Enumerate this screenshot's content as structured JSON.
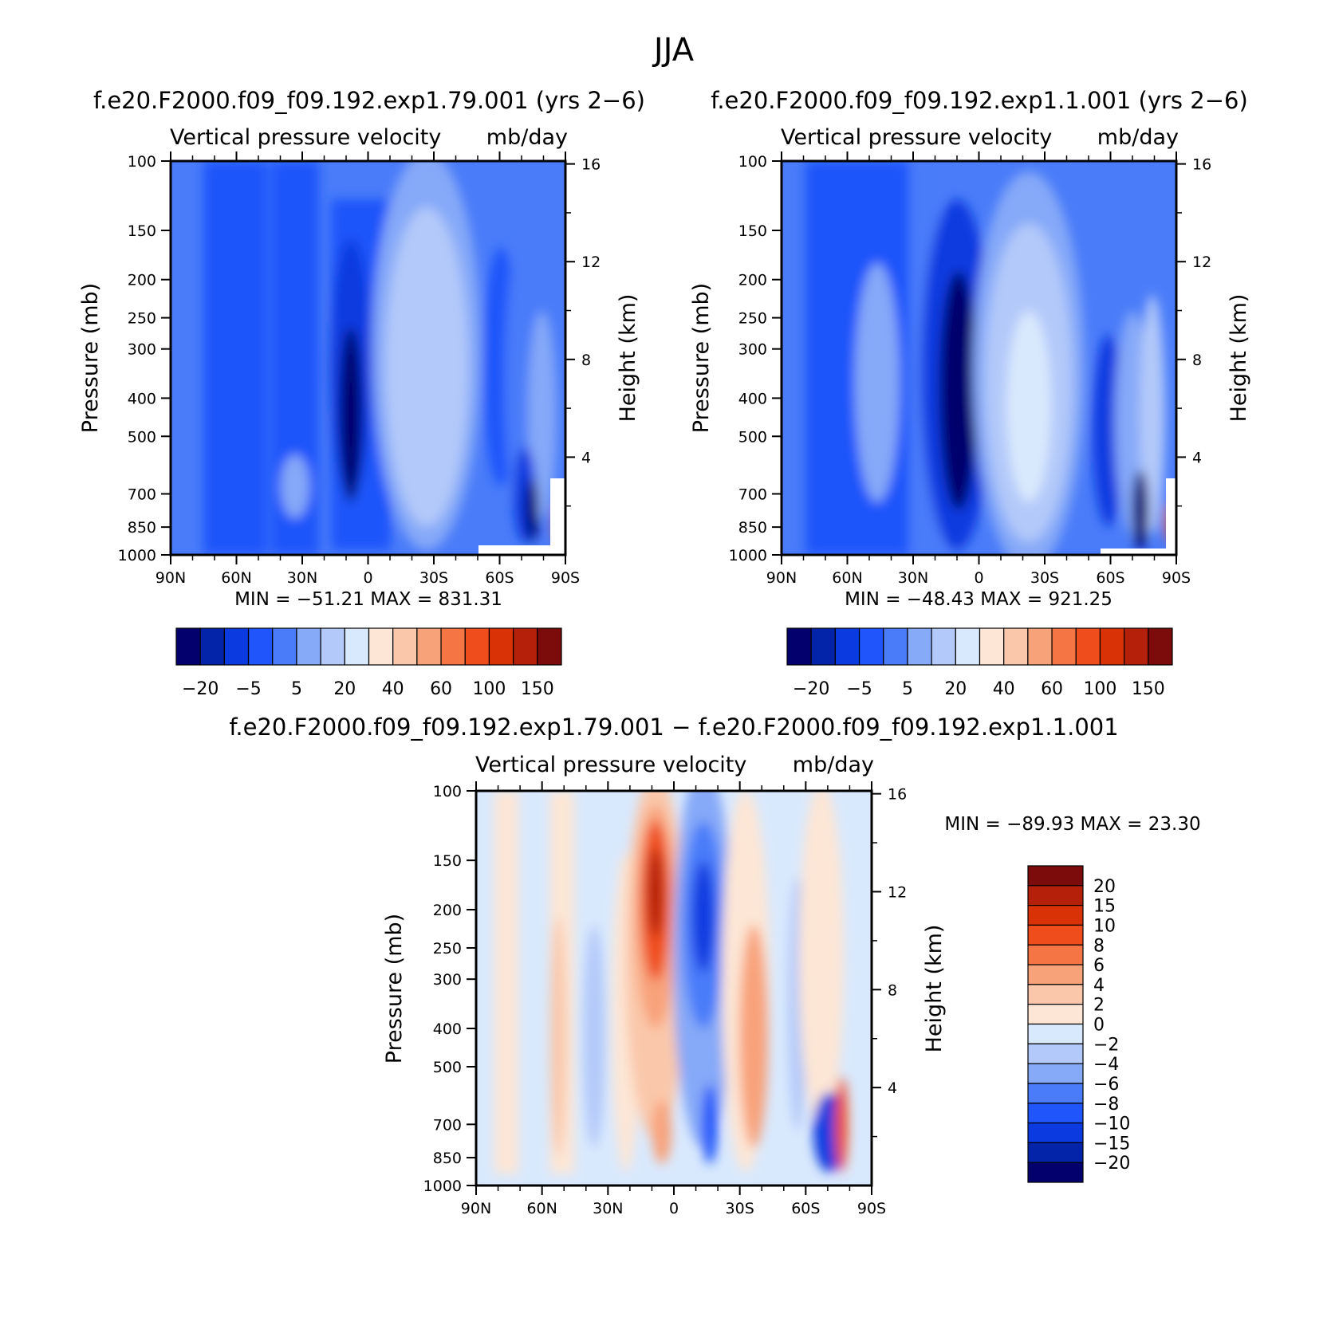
{
  "page_title": "JJA",
  "colors": {
    "top_scale": [
      "#03006d",
      "#0324a8",
      "#0a3ae0",
      "#1f55fa",
      "#4a7cf9",
      "#86a9f8",
      "#b3c9f9",
      "#d9e9fd",
      "#fde6d5",
      "#fac7aa",
      "#f8a27a",
      "#f57545",
      "#ef4d1c",
      "#d93207",
      "#b5200a",
      "#7c0b0b"
    ],
    "diff_scale": [
      "#03006d",
      "#0324a8",
      "#0a3ae0",
      "#1f55fa",
      "#4a7cf9",
      "#86a9f8",
      "#b3c9f9",
      "#d9e9fd",
      "#fde6d5",
      "#fac7aa",
      "#f8a27a",
      "#f57545",
      "#ef4d1c",
      "#d93207",
      "#b5200a",
      "#7c0b0b"
    ]
  },
  "panels": [
    {
      "id": "run1",
      "run_title": "f.e20.F2000.f09_f09.192.exp1.79.001 (yrs 2−6)",
      "var_title": "Vertical pressure velocity",
      "units": "mb/day",
      "min_max": "MIN = −51.21   MAX = 831.31"
    },
    {
      "id": "run2",
      "run_title": "f.e20.F2000.f09_f09.192.exp1.1.001 (yrs 2−6)",
      "var_title": "Vertical pressure velocity",
      "units": "mb/day",
      "min_max": "MIN = −48.43   MAX = 921.25"
    },
    {
      "id": "diff",
      "run_title": "f.e20.F2000.f09_f09.192.exp1.79.001 − f.e20.F2000.f09_f09.192.exp1.1.001",
      "var_title": "Vertical pressure velocity",
      "units": "mb/day",
      "min_max": "MIN = −89.93   MAX =   23.30"
    }
  ],
  "axes": {
    "ylabel": "Pressure (mb)",
    "y2label": "Height (km)",
    "pressure_ticks": [
      "100",
      "150",
      "200",
      "250",
      "300",
      "400",
      "500",
      "700",
      "850",
      "1000"
    ],
    "height_ticks": [
      "16",
      "12",
      "8",
      "4"
    ],
    "lat_ticks": [
      "90N",
      "60N",
      "30N",
      "0",
      "30S",
      "60S",
      "90S"
    ]
  },
  "colorbar_top_labels": [
    "−20",
    "−5",
    "5",
    "20",
    "40",
    "60",
    "100",
    "150"
  ],
  "colorbar_diff_labels": [
    "20",
    "15",
    "10",
    "8",
    "6",
    "4",
    "2",
    "0",
    "−2",
    "−4",
    "−6",
    "−8",
    "−10",
    "−15",
    "−20"
  ],
  "chart_data": [
    {
      "type": "heatmap",
      "title": "f.e20.F2000.f09_f09.192.exp1.79.001 (yrs 2−6)",
      "subtitle": "Vertical pressure velocity  mb/day",
      "xlabel": "",
      "ylabel": "Pressure (mb)",
      "y2label": "Height (km)",
      "x": [
        "90N",
        "60N",
        "30N",
        "0",
        "30S",
        "60S",
        "90S"
      ],
      "y": [
        100,
        150,
        200,
        250,
        300,
        400,
        500,
        700,
        850,
        1000
      ],
      "y_scale": "log",
      "ylim": [
        1000,
        100
      ],
      "xlim": [
        90,
        -90
      ],
      "contour_levels": [
        -20,
        -10,
        -5,
        0,
        5,
        10,
        20,
        30,
        40,
        50,
        60,
        80,
        100,
        120,
        150
      ],
      "min": -51.21,
      "max": 831.31
    },
    {
      "type": "heatmap",
      "title": "f.e20.F2000.f09_f09.192.exp1.1.001 (yrs 2−6)",
      "subtitle": "Vertical pressure velocity  mb/day",
      "xlabel": "",
      "ylabel": "Pressure (mb)",
      "y2label": "Height (km)",
      "x": [
        "90N",
        "60N",
        "30N",
        "0",
        "30S",
        "60S",
        "90S"
      ],
      "y": [
        100,
        150,
        200,
        250,
        300,
        400,
        500,
        700,
        850,
        1000
      ],
      "y_scale": "log",
      "ylim": [
        1000,
        100
      ],
      "xlim": [
        90,
        -90
      ],
      "contour_levels": [
        -20,
        -10,
        -5,
        0,
        5,
        10,
        20,
        30,
        40,
        50,
        60,
        80,
        100,
        120,
        150
      ],
      "min": -48.43,
      "max": 921.25
    },
    {
      "type": "heatmap",
      "title": "f.e20.F2000.f09_f09.192.exp1.79.001 − f.e20.F2000.f09_f09.192.exp1.1.001",
      "subtitle": "Vertical pressure velocity  mb/day",
      "xlabel": "",
      "ylabel": "Pressure (mb)",
      "y2label": "Height (km)",
      "x": [
        "90N",
        "60N",
        "30N",
        "0",
        "30S",
        "60S",
        "90S"
      ],
      "y": [
        100,
        150,
        200,
        250,
        300,
        400,
        500,
        700,
        850,
        1000
      ],
      "y_scale": "log",
      "ylim": [
        1000,
        100
      ],
      "xlim": [
        90,
        -90
      ],
      "contour_levels": [
        -20,
        -15,
        -10,
        -8,
        -6,
        -4,
        -2,
        0,
        2,
        4,
        6,
        8,
        10,
        15,
        20
      ],
      "min": -89.93,
      "max": 23.3
    }
  ]
}
